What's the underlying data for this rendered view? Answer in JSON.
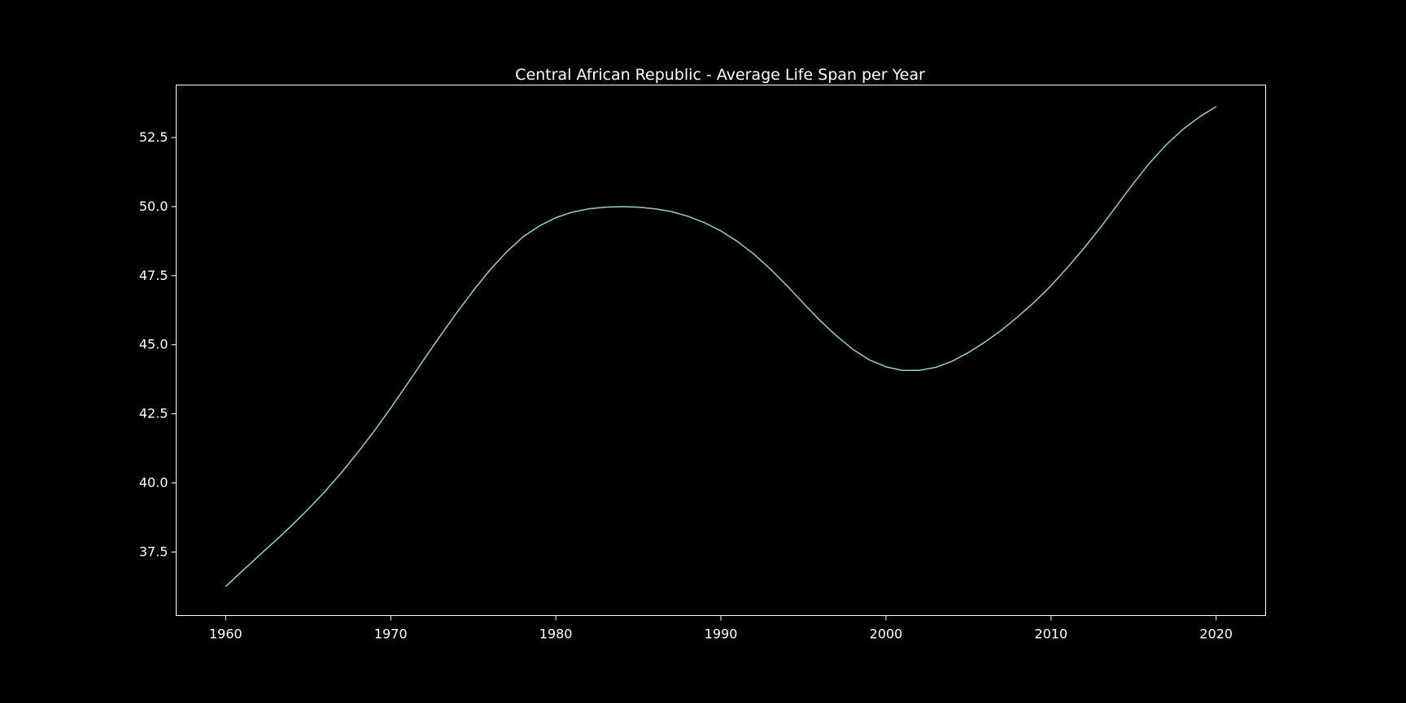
{
  "chart_data": {
    "type": "line",
    "title": "Central African Republic - Average Life Span per Year",
    "xlabel": "",
    "ylabel": "",
    "xlim": [
      1957,
      2023
    ],
    "ylim": [
      35.2,
      54.4
    ],
    "xticks": [
      1960,
      1970,
      1980,
      1990,
      2000,
      2010,
      2020
    ],
    "yticks": [
      37.5,
      40.0,
      42.5,
      45.0,
      47.5,
      50.0,
      52.5
    ],
    "ytick_labels": [
      "37.5",
      "40.0",
      "42.5",
      "45.0",
      "47.5",
      "50.0",
      "52.5"
    ],
    "grid": false,
    "legend": "none",
    "series": [
      {
        "color": "#8dd3c7",
        "x": [
          1960,
          1961,
          1962,
          1963,
          1964,
          1965,
          1966,
          1967,
          1968,
          1969,
          1970,
          1971,
          1972,
          1973,
          1974,
          1975,
          1976,
          1977,
          1978,
          1979,
          1980,
          1981,
          1982,
          1983,
          1984,
          1985,
          1986,
          1987,
          1988,
          1989,
          1990,
          1991,
          1992,
          1993,
          1994,
          1995,
          1996,
          1997,
          1998,
          1999,
          2000,
          2001,
          2002,
          2003,
          2004,
          2005,
          2006,
          2007,
          2008,
          2009,
          2010,
          2011,
          2012,
          2013,
          2014,
          2015,
          2016,
          2017,
          2018,
          2019,
          2020
        ],
        "values": [
          36.25,
          36.81,
          37.36,
          37.9,
          38.46,
          39.05,
          39.68,
          40.36,
          41.1,
          41.88,
          42.71,
          43.58,
          44.46,
          45.32,
          46.16,
          46.96,
          47.7,
          48.35,
          48.9,
          49.3,
          49.6,
          49.8,
          49.92,
          49.98,
          50.0,
          49.98,
          49.92,
          49.82,
          49.65,
          49.42,
          49.12,
          48.74,
          48.28,
          47.74,
          47.14,
          46.5,
          45.88,
          45.32,
          44.83,
          44.45,
          44.2,
          44.07,
          44.07,
          44.18,
          44.4,
          44.72,
          45.1,
          45.53,
          46.02,
          46.55,
          47.14,
          47.8,
          48.5,
          49.25,
          50.05,
          50.85,
          51.6,
          52.25,
          52.8,
          53.25,
          53.62
        ]
      }
    ]
  }
}
